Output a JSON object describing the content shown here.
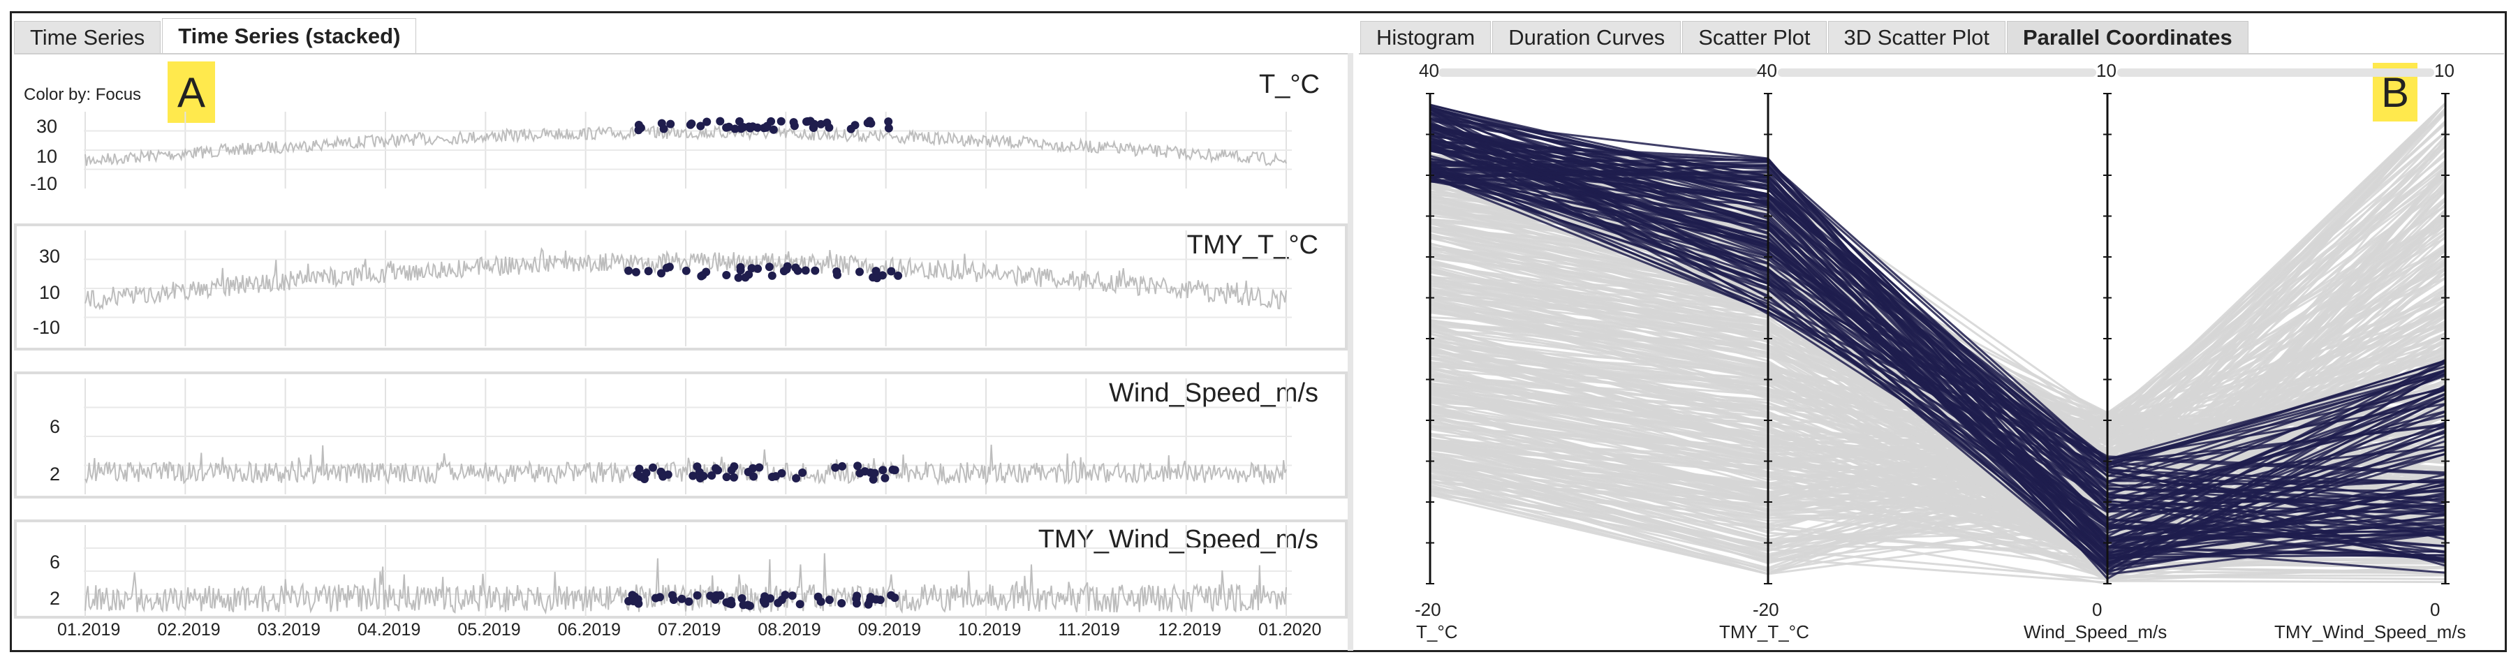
{
  "left_tabs": [
    {
      "label": "Time Series",
      "active": false
    },
    {
      "label": "Time Series (stacked)",
      "active": true
    }
  ],
  "right_tabs": [
    {
      "label": "Histogram",
      "active": false
    },
    {
      "label": "Duration Curves",
      "active": false
    },
    {
      "label": "Scatter Plot",
      "active": false
    },
    {
      "label": "3D Scatter Plot",
      "active": false
    },
    {
      "label": "Parallel Coordinates",
      "active": true
    }
  ],
  "color_by": "Color by: Focus",
  "label_a": "A",
  "label_b": "B",
  "colors": {
    "background_line": "#bdbdbd",
    "focus": "#1f1d4d",
    "pc_grey": "#d6d6d6"
  },
  "series": [
    {
      "title": "T_°C",
      "yticks": [
        "30",
        "10",
        "-10"
      ]
    },
    {
      "title": "TMY_T_°C",
      "yticks": [
        "30",
        "10",
        "-10"
      ]
    },
    {
      "title": "Wind_Speed_m/s",
      "yticks": [
        "6",
        "2"
      ]
    },
    {
      "title": "TMY_Wind_Speed_m/s",
      "yticks": [
        "6",
        "2"
      ]
    }
  ],
  "months": [
    "01.2019",
    "02.2019",
    "03.2019",
    "04.2019",
    "05.2019",
    "06.2019",
    "07.2019",
    "08.2019",
    "09.2019",
    "10.2019",
    "11.2019",
    "12.2019",
    "01.2020"
  ],
  "pc_axes": [
    {
      "name": "T_°C",
      "max": "40",
      "min": "-20"
    },
    {
      "name": "TMY_T_°C",
      "max": "40",
      "min": "-20"
    },
    {
      "name": "Wind_Speed_m/s",
      "max": "10",
      "min": "0"
    },
    {
      "name": "TMY_Wind_Speed_m/s",
      "max": "10",
      "min": "0"
    }
  ]
}
